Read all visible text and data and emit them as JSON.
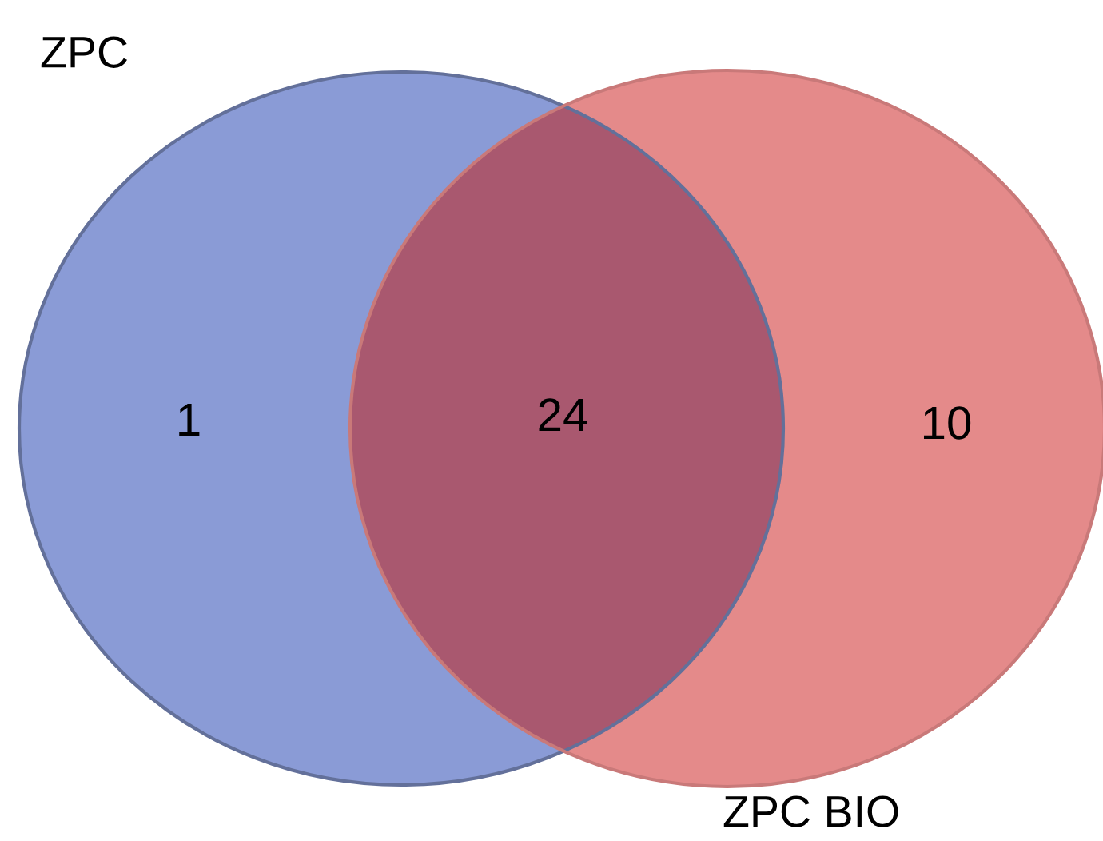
{
  "chart_data": {
    "type": "other",
    "categories": [
      null,
      null,
      null
    ],
    "values": [
      1,
      24,
      10
    ],
    "colors": [
      "#8a9bd6",
      "#a9586f",
      "#e48a8a"
    ],
    "data_labels": true,
    "annotations": [
      "ZPC",
      "ZPC BIO"
    ]
  }
}
